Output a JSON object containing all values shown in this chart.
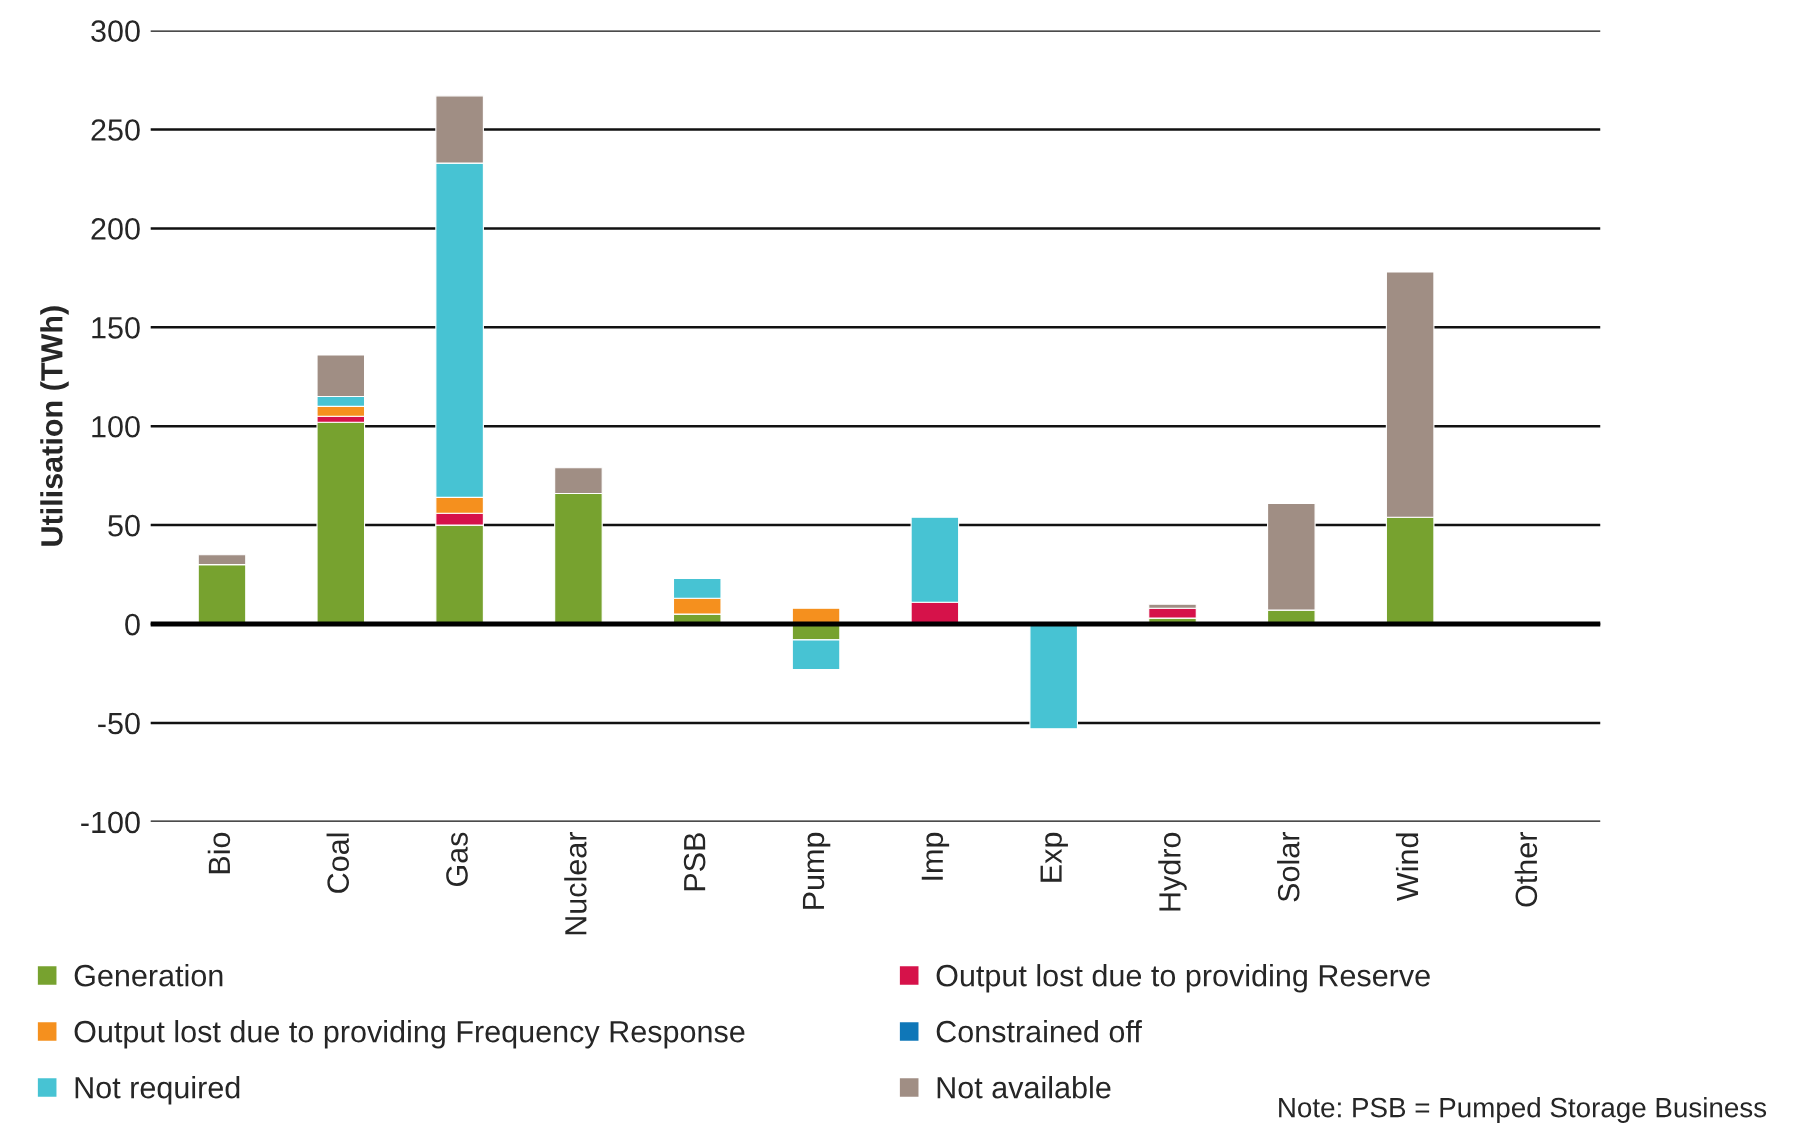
{
  "chart_data": {
    "type": "bar",
    "stacked": true,
    "ylabel": "Utilisation (TWh)",
    "categories": [
      "Bio",
      "Coal",
      "Gas",
      "Nuclear",
      "PSB",
      "Pump",
      "Imp",
      "Exp",
      "Hydro",
      "Solar",
      "Wind",
      "Other"
    ],
    "series": [
      {
        "name": "Generation",
        "color": "#77a22f",
        "values": [
          30,
          102,
          50,
          66,
          5,
          -8,
          0,
          0,
          3,
          7,
          54,
          0
        ]
      },
      {
        "name": "Output lost due to providing Reserve",
        "color": "#d6124a",
        "values": [
          0,
          3,
          6,
          0,
          0,
          0,
          11,
          0,
          5,
          0,
          0,
          0
        ]
      },
      {
        "name": "Output lost due to providing Frequency Response",
        "color": "#f5901e",
        "values": [
          0,
          5,
          8,
          0,
          8,
          8,
          0,
          0,
          0,
          0,
          0,
          0
        ]
      },
      {
        "name": "Constrained off",
        "color": "#0f77b8",
        "values": [
          0,
          0,
          0,
          0,
          0,
          0,
          0,
          0,
          0,
          0,
          0,
          0
        ]
      },
      {
        "name": "Not required",
        "color": "#47c3d3",
        "values": [
          0,
          5,
          169,
          0,
          10,
          -15,
          43,
          -53,
          0,
          0,
          0,
          0
        ]
      },
      {
        "name": "Not available",
        "color": "#a08e84",
        "values": [
          5,
          21,
          34,
          13,
          0,
          0,
          0,
          0,
          2,
          54,
          124,
          0
        ]
      }
    ],
    "ylim": [
      -100,
      300
    ],
    "yticks": [
      -100,
      -50,
      0,
      50,
      100,
      150,
      200,
      250,
      300
    ],
    "grid": "y",
    "legend": "bottom",
    "annotations": [
      "Note: PSB = Pumped Storage Business"
    ]
  }
}
